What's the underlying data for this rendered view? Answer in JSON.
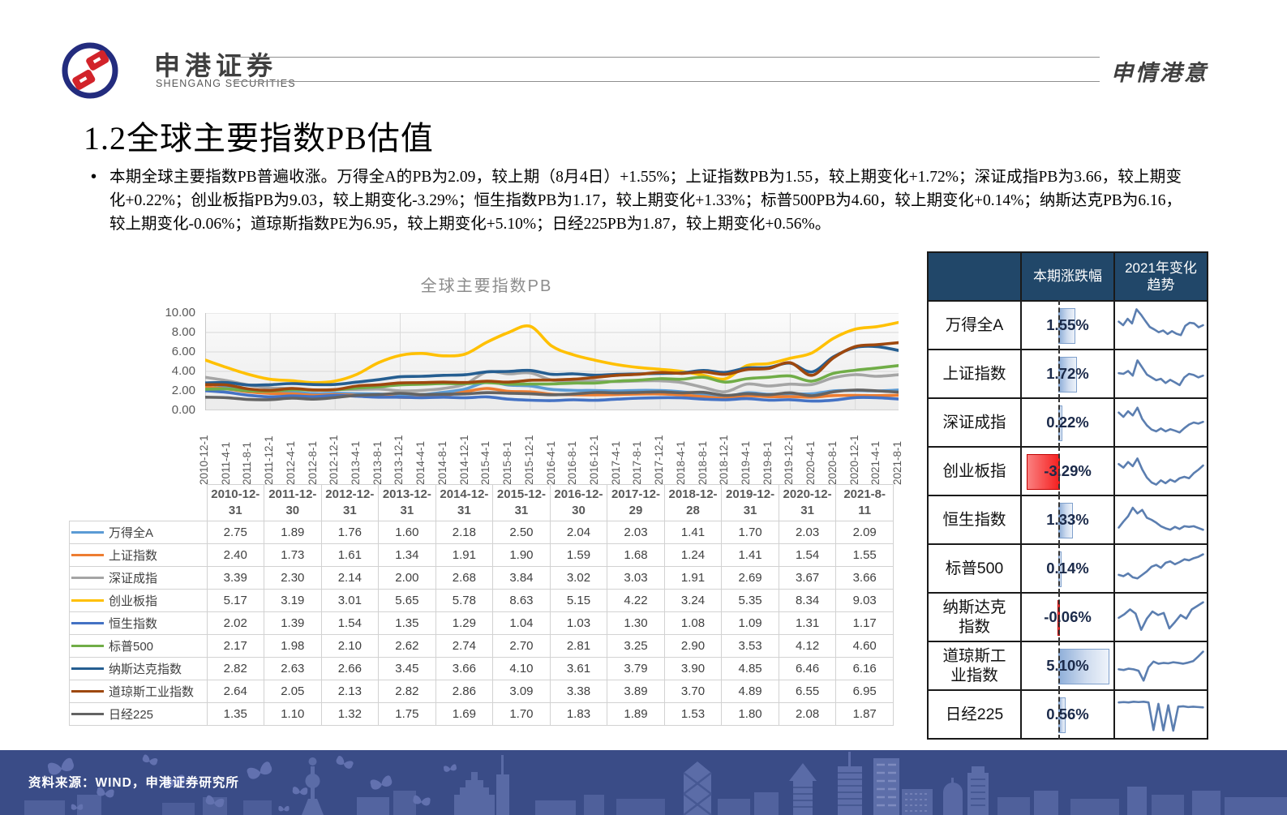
{
  "header": {
    "brand_cn": "申港证券",
    "brand_en": "SHENGANG SECURITIES",
    "slogan": "申情港意"
  },
  "title": "1.2全球主要指数PB估值",
  "bullet_text": "本期全球主要指数PB普遍收涨。万得全A的PB为2.09，较上期（8月4日）+1.55%；上证指数PB为1.55，较上期变化+1.72%；深证成指PB为3.66，较上期变化+0.22%；创业板指PB为9.03，较上期变化-3.29%；恒生指数PB为1.17，较上期变化+1.33%；标普500PB为4.60，较上期变化+0.14%；纳斯达克PB为6.16，较上期变化-0.06%；道琼斯指数PE为6.95，较上期变化+5.10%；日经225PB为1.87，较上期变化+0.56%。",
  "chart_data": [
    {
      "type": "line",
      "title": "全球主要指数PB",
      "xlabel": "",
      "ylabel": "",
      "ylim": [
        0,
        10
      ],
      "yticks": [
        "10.00",
        "8.00",
        "6.00",
        "4.00",
        "2.00",
        "0.00"
      ],
      "grid": true,
      "legend_position": "table-left",
      "x": [
        "2010-12-1",
        "2011-4-1",
        "2011-8-1",
        "2011-12-1",
        "2012-4-1",
        "2012-8-1",
        "2012-12-1",
        "2013-4-1",
        "2013-8-1",
        "2013-12-1",
        "2014-4-1",
        "2014-8-1",
        "2014-12-1",
        "2015-4-1",
        "2015-8-1",
        "2015-12-1",
        "2016-4-1",
        "2016-8-1",
        "2016-12-1",
        "2017-4-1",
        "2017-8-1",
        "2017-12-1",
        "2018-4-1",
        "2018-8-1",
        "2018-12-1",
        "2019-4-1",
        "2019-8-1",
        "2019-12-1",
        "2020-4-1",
        "2020-8-1",
        "2020-12-1",
        "2021-4-1",
        "2021-8-1"
      ],
      "series": [
        {
          "name": "万得全A",
          "color": "#5B9BD5",
          "values": [
            2.75,
            2.45,
            2.1,
            1.89,
            1.85,
            1.72,
            1.76,
            1.72,
            1.68,
            1.6,
            1.62,
            1.85,
            2.18,
            2.9,
            2.6,
            2.5,
            2.15,
            2.05,
            2.04,
            2.0,
            2.05,
            2.03,
            1.9,
            1.65,
            1.41,
            1.8,
            1.65,
            1.7,
            1.7,
            2.0,
            2.03,
            2.0,
            2.09
          ]
        },
        {
          "name": "上证指数",
          "color": "#ED7D31",
          "values": [
            2.4,
            2.2,
            1.9,
            1.73,
            1.7,
            1.55,
            1.61,
            1.55,
            1.5,
            1.34,
            1.35,
            1.5,
            1.91,
            2.25,
            1.95,
            1.9,
            1.65,
            1.6,
            1.59,
            1.62,
            1.67,
            1.68,
            1.58,
            1.4,
            1.24,
            1.5,
            1.4,
            1.41,
            1.35,
            1.52,
            1.54,
            1.52,
            1.55
          ]
        },
        {
          "name": "深证成指",
          "color": "#A5A5A5",
          "values": [
            3.39,
            3.05,
            2.6,
            2.3,
            2.25,
            2.05,
            2.14,
            2.15,
            2.2,
            2.0,
            2.05,
            2.25,
            2.68,
            3.95,
            3.75,
            3.84,
            3.1,
            3.0,
            3.02,
            2.95,
            3.02,
            3.03,
            2.85,
            2.35,
            1.91,
            2.7,
            2.5,
            2.69,
            2.65,
            3.35,
            3.67,
            3.5,
            3.66
          ]
        },
        {
          "name": "创业板指",
          "color": "#FFC000",
          "values": [
            5.17,
            4.4,
            3.7,
            3.19,
            3.05,
            2.85,
            3.01,
            3.7,
            4.9,
            5.65,
            5.85,
            5.6,
            5.78,
            7.0,
            8.0,
            8.63,
            6.6,
            5.7,
            5.15,
            4.7,
            4.4,
            4.22,
            4.0,
            3.6,
            3.24,
            4.6,
            4.8,
            5.35,
            5.9,
            7.4,
            8.34,
            8.6,
            9.03
          ]
        },
        {
          "name": "恒生指数",
          "color": "#4472C4",
          "values": [
            2.02,
            1.85,
            1.55,
            1.39,
            1.48,
            1.4,
            1.54,
            1.45,
            1.35,
            1.35,
            1.3,
            1.35,
            1.29,
            1.38,
            1.15,
            1.04,
            1.0,
            1.08,
            1.03,
            1.15,
            1.25,
            1.3,
            1.28,
            1.15,
            1.08,
            1.2,
            1.05,
            1.09,
            0.95,
            1.05,
            1.31,
            1.3,
            1.17
          ]
        },
        {
          "name": "标普500",
          "color": "#70AD47",
          "values": [
            2.17,
            2.2,
            2.0,
            1.98,
            2.12,
            2.08,
            2.1,
            2.3,
            2.42,
            2.62,
            2.68,
            2.75,
            2.74,
            2.85,
            2.7,
            2.7,
            2.72,
            2.8,
            2.81,
            3.0,
            3.1,
            3.25,
            3.2,
            3.4,
            2.9,
            3.25,
            3.4,
            3.53,
            3.0,
            3.8,
            4.12,
            4.35,
            4.6
          ]
        },
        {
          "name": "纳斯达克指数",
          "color": "#255E91",
          "values": [
            2.82,
            2.85,
            2.6,
            2.63,
            2.75,
            2.65,
            2.66,
            2.9,
            3.15,
            3.45,
            3.5,
            3.6,
            3.66,
            3.95,
            4.0,
            4.1,
            3.7,
            3.75,
            3.61,
            3.7,
            3.75,
            3.79,
            3.85,
            4.1,
            3.9,
            4.35,
            4.4,
            4.85,
            3.95,
            5.5,
            6.46,
            6.55,
            6.16
          ]
        },
        {
          "name": "道琼斯工业指数",
          "color": "#9E480E",
          "values": [
            2.64,
            2.6,
            2.2,
            2.05,
            2.25,
            2.1,
            2.13,
            2.5,
            2.62,
            2.82,
            2.85,
            2.9,
            2.86,
            3.0,
            2.9,
            3.09,
            3.12,
            3.2,
            3.38,
            3.6,
            3.7,
            3.89,
            3.8,
            3.95,
            3.7,
            4.2,
            4.3,
            4.89,
            3.6,
            5.4,
            6.55,
            6.75,
            6.95
          ]
        },
        {
          "name": "日经225",
          "color": "#636363",
          "values": [
            1.35,
            1.3,
            1.12,
            1.1,
            1.25,
            1.15,
            1.32,
            1.55,
            1.62,
            1.75,
            1.62,
            1.66,
            1.69,
            1.82,
            1.76,
            1.7,
            1.6,
            1.68,
            1.83,
            1.8,
            1.84,
            1.89,
            1.8,
            1.85,
            1.53,
            1.7,
            1.6,
            1.8,
            1.5,
            1.9,
            2.08,
            2.0,
            1.87
          ]
        }
      ]
    }
  ],
  "table": {
    "columns": [
      "2010-12-31",
      "2011-12-30",
      "2012-12-31",
      "2013-12-31",
      "2014-12-31",
      "2015-12-31",
      "2016-12-30",
      "2017-12-29",
      "2018-12-28",
      "2019-12-31",
      "2020-12-31",
      "2021-8-11"
    ],
    "rows": [
      {
        "name": "万得全A",
        "color": "#5B9BD5",
        "values": [
          "2.75",
          "1.89",
          "1.76",
          "1.60",
          "2.18",
          "2.50",
          "2.04",
          "2.03",
          "1.41",
          "1.70",
          "2.03",
          "2.09"
        ]
      },
      {
        "name": "上证指数",
        "color": "#ED7D31",
        "values": [
          "2.40",
          "1.73",
          "1.61",
          "1.34",
          "1.91",
          "1.90",
          "1.59",
          "1.68",
          "1.24",
          "1.41",
          "1.54",
          "1.55"
        ]
      },
      {
        "name": "深证成指",
        "color": "#A5A5A5",
        "values": [
          "3.39",
          "2.30",
          "2.14",
          "2.00",
          "2.68",
          "3.84",
          "3.02",
          "3.03",
          "1.91",
          "2.69",
          "3.67",
          "3.66"
        ]
      },
      {
        "name": "创业板指",
        "color": "#FFC000",
        "values": [
          "5.17",
          "3.19",
          "3.01",
          "5.65",
          "5.78",
          "8.63",
          "5.15",
          "4.22",
          "3.24",
          "5.35",
          "8.34",
          "9.03"
        ]
      },
      {
        "name": "恒生指数",
        "color": "#4472C4",
        "values": [
          "2.02",
          "1.39",
          "1.54",
          "1.35",
          "1.29",
          "1.04",
          "1.03",
          "1.30",
          "1.08",
          "1.09",
          "1.31",
          "1.17"
        ]
      },
      {
        "name": "标普500",
        "color": "#70AD47",
        "values": [
          "2.17",
          "1.98",
          "2.10",
          "2.62",
          "2.74",
          "2.70",
          "2.81",
          "3.25",
          "2.90",
          "3.53",
          "4.12",
          "4.60"
        ]
      },
      {
        "name": "纳斯达克指数",
        "color": "#255E91",
        "values": [
          "2.82",
          "2.63",
          "2.66",
          "3.45",
          "3.66",
          "4.10",
          "3.61",
          "3.79",
          "3.90",
          "4.85",
          "6.46",
          "6.16"
        ]
      },
      {
        "name": "道琼斯工业指数",
        "color": "#9E480E",
        "values": [
          "2.64",
          "2.05",
          "2.13",
          "2.82",
          "2.86",
          "3.09",
          "3.38",
          "3.89",
          "3.70",
          "4.89",
          "6.55",
          "6.95"
        ]
      },
      {
        "name": "日经225",
        "color": "#636363",
        "values": [
          "1.35",
          "1.10",
          "1.32",
          "1.75",
          "1.69",
          "1.70",
          "1.83",
          "1.89",
          "1.53",
          "1.80",
          "2.08",
          "1.87"
        ]
      }
    ]
  },
  "right_panel": {
    "headers": [
      "",
      "本期涨跌幅",
      "2021年变化趋势"
    ],
    "bar_scale_max": 5.5,
    "accent_positive": "#8FAFD9",
    "accent_negative": "#F52020",
    "sparkline_color": "#5B7EB0",
    "rows": [
      {
        "label": "万得全A",
        "pct": "1.55%",
        "value": 1.55,
        "trend": [
          60,
          50,
          68,
          55,
          95,
          80,
          62,
          45,
          38,
          30,
          35,
          25,
          33,
          26,
          22,
          48,
          57,
          55,
          44,
          50
        ]
      },
      {
        "label": "上证指数",
        "pct": "1.72%",
        "value": 1.72,
        "trend": [
          52,
          50,
          58,
          45,
          88,
          68,
          48,
          40,
          32,
          36,
          24,
          33,
          26,
          18,
          40,
          50,
          47,
          40,
          45
        ]
      },
      {
        "label": "深证成指",
        "pct": "0.22%",
        "value": 0.22,
        "trend": [
          78,
          66,
          82,
          70,
          92,
          60,
          42,
          30,
          25,
          33,
          25,
          31,
          27,
          22,
          34,
          44,
          50,
          47,
          52
        ]
      },
      {
        "label": "创业板指",
        "pct": "-3.29%",
        "value": -3.29,
        "trend": [
          70,
          60,
          76,
          64,
          86,
          55,
          32,
          18,
          12,
          24,
          16,
          26,
          20,
          30,
          34,
          30,
          44,
          54,
          66
        ]
      },
      {
        "label": "恒生指数",
        "pct": "1.33%",
        "value": 1.33,
        "trend": [
          28,
          45,
          60,
          84,
          68,
          78,
          56,
          50,
          42,
          32,
          26,
          22,
          30,
          24,
          32,
          30,
          32,
          27,
          22
        ]
      },
      {
        "label": "标普500",
        "pct": "0.14%",
        "value": 0.14,
        "trend": [
          32,
          28,
          36,
          25,
          22,
          32,
          42,
          55,
          60,
          52,
          66,
          70,
          62,
          68,
          76,
          73,
          79,
          83,
          90
        ]
      },
      {
        "label": "纳斯达克指数",
        "pct": "-0.06%",
        "value": -0.06,
        "trend": [
          48,
          58,
          72,
          60,
          14,
          46,
          66,
          56,
          62,
          18,
          36,
          56,
          46,
          72,
          82,
          92
        ]
      },
      {
        "label": "道琼斯工业指数",
        "pct": "5.10%",
        "value": 5.1,
        "trend": [
          40,
          38,
          42,
          40,
          36,
          8,
          46,
          62,
          56,
          58,
          57,
          60,
          58,
          56,
          59,
          63,
          76,
          90
        ]
      },
      {
        "label": "日经225",
        "pct": "0.56%",
        "value": 0.56,
        "trend": [
          84,
          85,
          84,
          86,
          85,
          86,
          84,
          6,
          80,
          5,
          76,
          4,
          72,
          73,
          71,
          72,
          71,
          70
        ]
      }
    ]
  },
  "footer": {
    "source": "资料来源：WIND，申港证券研究所"
  }
}
